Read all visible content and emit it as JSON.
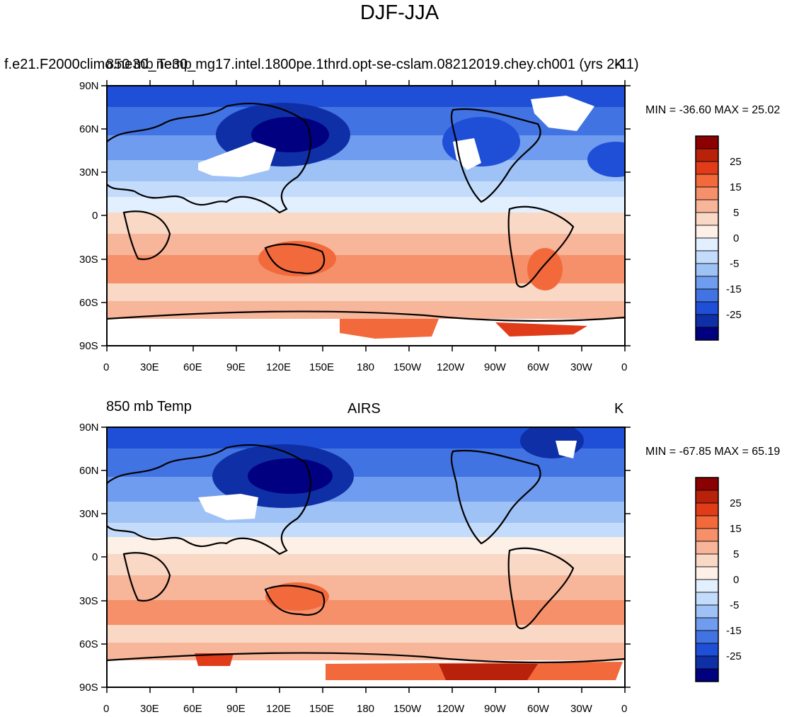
{
  "title": "DJF-JJA",
  "panels": [
    {
      "id": "model",
      "left_label": "f.e21.F2000climo.ne30_ne30_mg17.intel.1800pe.1thrd.opt-se-cslam.08212019.chey.ch001 (yrs 2-11)",
      "left_label_overlap": "850 mb Temp",
      "center_label": "",
      "right_label": "K",
      "min_max": "MIN = -36.60 MAX =  25.02"
    },
    {
      "id": "airs",
      "left_label": "850 mb Temp",
      "center_label": "AIRS",
      "right_label": "K",
      "min_max": "MIN = -67.85 MAX =  65.19"
    }
  ],
  "lat_ticks": [
    "90N",
    "60N",
    "30N",
    "0",
    "30S",
    "60S",
    "90S"
  ],
  "lon_ticks": [
    "0",
    "30E",
    "60E",
    "90E",
    "120E",
    "150E",
    "180",
    "150W",
    "120W",
    "90W",
    "60W",
    "30W",
    "0"
  ],
  "colorbar": {
    "labels": [
      "25",
      "15",
      "5",
      "0",
      "-5",
      "-15",
      "-25"
    ],
    "colors": [
      "#8b0000",
      "#b8220a",
      "#e03c1a",
      "#f26a3c",
      "#f5906a",
      "#f7b59a",
      "#fad8c6",
      "#fdf0e6",
      "#e2efff",
      "#c4dcfb",
      "#9ec2f5",
      "#6f9cee",
      "#4273e3",
      "#1f4fd6",
      "#0f2fa6",
      "#000080"
    ]
  }
}
